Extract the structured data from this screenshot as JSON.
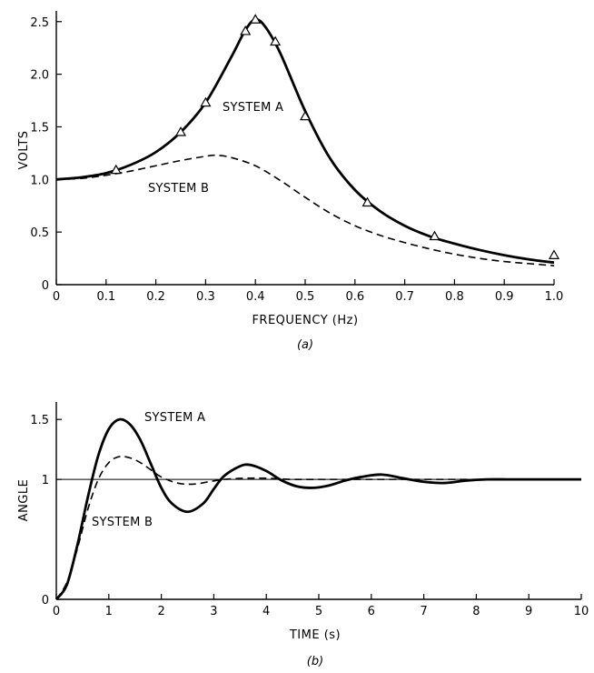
{
  "figure": {
    "panel_a_caption": "(a)",
    "panel_b_caption": "(b)",
    "colors": {
      "ink": "#000000",
      "background": "#ffffff"
    }
  },
  "chart_data": [
    {
      "type": "line",
      "xlabel": "FREQUENCY (Hz)",
      "ylabel": "VOLTS",
      "xlim": [
        0,
        1.0
      ],
      "ylim": [
        0,
        2.55
      ],
      "grid": false,
      "xticks": [
        "0",
        "0.1",
        "0.2",
        "0.3",
        "0.4",
        "0.5",
        "0.6",
        "0.7",
        "0.8",
        "0.9",
        "1.0"
      ],
      "yticks": [
        "0",
        "0.5",
        "1.0",
        "1.5",
        "2.0",
        "2.5"
      ],
      "series": [
        {
          "name": "SYSTEM A",
          "style": "solid",
          "x": [
            0,
            0.05,
            0.1,
            0.15,
            0.2,
            0.25,
            0.3,
            0.35,
            0.38,
            0.4,
            0.42,
            0.45,
            0.5,
            0.55,
            0.6,
            0.65,
            0.7,
            0.75,
            0.8,
            0.85,
            0.9,
            0.95,
            1.0
          ],
          "y": [
            1.0,
            1.02,
            1.06,
            1.14,
            1.26,
            1.45,
            1.73,
            2.15,
            2.42,
            2.52,
            2.45,
            2.2,
            1.65,
            1.2,
            0.9,
            0.7,
            0.56,
            0.46,
            0.39,
            0.33,
            0.28,
            0.24,
            0.21
          ]
        },
        {
          "name": "SYSTEM B",
          "style": "dashed",
          "x": [
            0,
            0.05,
            0.1,
            0.15,
            0.2,
            0.25,
            0.3,
            0.32,
            0.35,
            0.4,
            0.45,
            0.5,
            0.55,
            0.6,
            0.65,
            0.7,
            0.75,
            0.8,
            0.85,
            0.9,
            0.95,
            1.0
          ],
          "y": [
            1.0,
            1.01,
            1.04,
            1.08,
            1.13,
            1.18,
            1.22,
            1.23,
            1.21,
            1.13,
            0.99,
            0.83,
            0.68,
            0.56,
            0.47,
            0.4,
            0.34,
            0.29,
            0.25,
            0.22,
            0.2,
            0.18
          ]
        },
        {
          "name": "",
          "style": "triangle-markers",
          "x": [
            0.12,
            0.25,
            0.3,
            0.38,
            0.4,
            0.44,
            0.5,
            0.625,
            0.76,
            1.0
          ],
          "y": [
            1.09,
            1.45,
            1.73,
            2.41,
            2.52,
            2.31,
            1.6,
            0.78,
            0.46,
            0.28
          ]
        }
      ]
    },
    {
      "type": "line",
      "xlabel": "TIME (s)",
      "ylabel": "ANGLE",
      "xlim": [
        0,
        10
      ],
      "ylim": [
        0,
        1.6
      ],
      "grid": false,
      "reference_line": 1,
      "xticks": [
        "0",
        "1",
        "2",
        "3",
        "4",
        "5",
        "6",
        "7",
        "8",
        "9",
        "10"
      ],
      "yticks": [
        "0",
        "1",
        "1.5"
      ],
      "series": [
        {
          "name": "SYSTEM A",
          "style": "solid",
          "x": [
            0,
            0.2,
            0.4,
            0.6,
            0.8,
            1.0,
            1.2,
            1.4,
            1.6,
            1.8,
            2.0,
            2.2,
            2.5,
            2.8,
            3.0,
            3.2,
            3.5,
            3.7,
            4.0,
            4.3,
            4.6,
            4.9,
            5.2,
            5.5,
            5.8,
            6.2,
            6.6,
            7.0,
            7.4,
            7.8,
            8.2,
            8.6,
            9.0,
            9.5,
            10.0
          ],
          "y": [
            0,
            0.12,
            0.45,
            0.85,
            1.2,
            1.42,
            1.5,
            1.46,
            1.33,
            1.13,
            0.93,
            0.8,
            0.73,
            0.8,
            0.92,
            1.03,
            1.11,
            1.12,
            1.07,
            0.99,
            0.94,
            0.93,
            0.95,
            0.99,
            1.02,
            1.04,
            1.01,
            0.98,
            0.97,
            0.99,
            1.0,
            1.0,
            1.0,
            1.0,
            1.0
          ]
        },
        {
          "name": "SYSTEM B",
          "style": "dashed",
          "x": [
            0,
            0.2,
            0.4,
            0.6,
            0.8,
            1.0,
            1.2,
            1.4,
            1.6,
            1.8,
            2.0,
            2.3,
            2.6,
            2.9,
            3.2,
            3.6,
            4.0,
            4.5,
            5.0,
            6.0,
            7.0,
            8.0
          ],
          "y": [
            0,
            0.14,
            0.42,
            0.75,
            1.0,
            1.14,
            1.19,
            1.18,
            1.14,
            1.08,
            1.02,
            0.97,
            0.96,
            0.98,
            1.0,
            1.01,
            1.01,
            1.0,
            1.0,
            1.0,
            1.0,
            1.0
          ]
        }
      ],
      "annotations": [
        {
          "text": "SYSTEM A"
        },
        {
          "text": "SYSTEM B"
        }
      ]
    }
  ]
}
